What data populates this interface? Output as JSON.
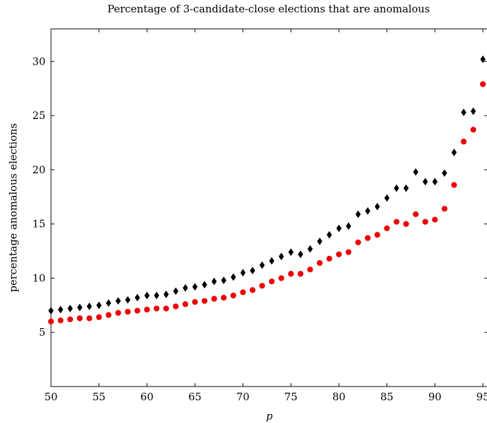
{
  "chart_data": {
    "type": "scatter",
    "title": "Percentage of 3-candidate-close elections that are anomalous",
    "xlabel": "p",
    "ylabel": "percentage anomalous elections",
    "xlim": [
      50,
      95.5
    ],
    "ylim": [
      0,
      33
    ],
    "xticks": [
      50,
      55,
      60,
      65,
      70,
      75,
      80,
      85,
      90,
      95
    ],
    "yticks": [
      5,
      10,
      15,
      20,
      25,
      30
    ],
    "grid": false,
    "series": [
      {
        "marker": "diamond",
        "color": "#000000",
        "x": [
          50,
          51,
          52,
          53,
          54,
          55,
          56,
          57,
          58,
          59,
          60,
          61,
          62,
          63,
          64,
          65,
          66,
          67,
          68,
          69,
          70,
          71,
          72,
          73,
          74,
          75,
          76,
          77,
          78,
          79,
          80,
          81,
          82,
          83,
          84,
          85,
          86,
          87,
          88,
          89,
          90,
          91,
          92,
          93,
          94,
          95
        ],
        "y": [
          7.0,
          7.1,
          7.2,
          7.3,
          7.4,
          7.5,
          7.7,
          7.9,
          8.0,
          8.2,
          8.4,
          8.4,
          8.5,
          8.8,
          9.1,
          9.2,
          9.4,
          9.7,
          9.8,
          10.1,
          10.5,
          10.7,
          11.2,
          11.6,
          12.0,
          12.4,
          12.2,
          12.7,
          13.4,
          14.0,
          14.6,
          14.8,
          15.9,
          16.2,
          16.6,
          17.4,
          18.3,
          18.3,
          19.8,
          18.9,
          18.9,
          19.7,
          21.6,
          25.3,
          25.4,
          30.2
        ]
      },
      {
        "marker": "circle",
        "color": "#ee0000",
        "x": [
          50,
          51,
          52,
          53,
          54,
          55,
          56,
          57,
          58,
          59,
          60,
          61,
          62,
          63,
          64,
          65,
          66,
          67,
          68,
          69,
          70,
          71,
          72,
          73,
          74,
          75,
          76,
          77,
          78,
          79,
          80,
          81,
          82,
          83,
          84,
          85,
          86,
          87,
          88,
          89,
          90,
          91,
          92,
          93,
          94,
          95
        ],
        "y": [
          6.0,
          6.1,
          6.2,
          6.3,
          6.3,
          6.4,
          6.6,
          6.8,
          6.9,
          7.0,
          7.1,
          7.2,
          7.2,
          7.4,
          7.6,
          7.8,
          7.9,
          8.1,
          8.2,
          8.4,
          8.7,
          8.9,
          9.3,
          9.7,
          10.0,
          10.4,
          10.4,
          10.8,
          11.4,
          11.8,
          12.2,
          12.4,
          13.3,
          13.7,
          14.0,
          14.6,
          15.2,
          15.0,
          15.9,
          15.2,
          15.4,
          16.4,
          18.6,
          22.6,
          23.7,
          27.9
        ]
      }
    ]
  }
}
